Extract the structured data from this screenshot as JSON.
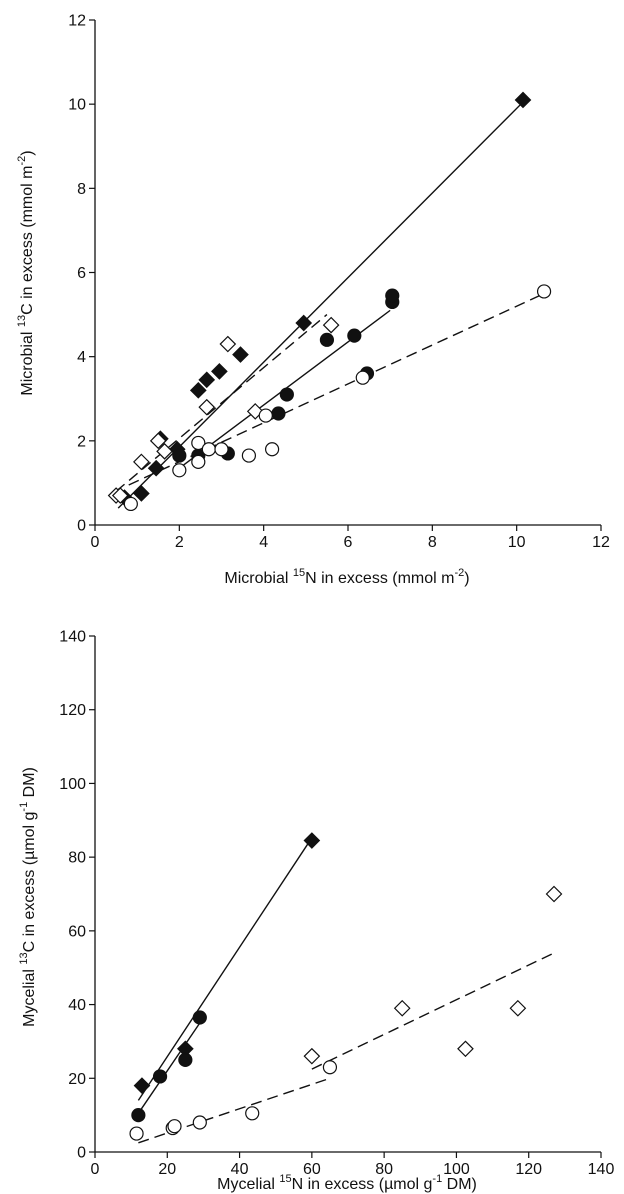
{
  "chart_data": [
    {
      "type": "scatter",
      "title": "",
      "xlabel": {
        "pre": "Microbial ",
        "sup1": "15",
        "mid": "N in excess (mmol m",
        "sup2": "-2",
        "post": ")"
      },
      "ylabel": {
        "pre": "Microbial ",
        "sup1": "13",
        "mid": "C in excess (mmol m",
        "sup2": "-2",
        "post": ")"
      },
      "xlim": [
        0,
        12
      ],
      "ylim": [
        0,
        12
      ],
      "xticks": [
        0,
        2,
        4,
        6,
        8,
        10,
        12
      ],
      "yticks": [
        0,
        2,
        4,
        6,
        8,
        10,
        12
      ],
      "xtick_labels": [
        "0",
        "2",
        "4",
        "6",
        "8",
        "10",
        "12"
      ],
      "ytick_labels": [
        "0",
        "2",
        "4",
        "6",
        "8",
        "10",
        "12"
      ],
      "grid": false,
      "series": [
        {
          "marker": "diamond-filled",
          "points": [
            [
              0.7,
              0.65
            ],
            [
              1.1,
              0.75
            ],
            [
              1.45,
              1.35
            ],
            [
              1.55,
              2.05
            ],
            [
              1.95,
              1.8
            ],
            [
              2.45,
              3.2
            ],
            [
              2.65,
              3.45
            ],
            [
              2.95,
              3.65
            ],
            [
              3.45,
              4.05
            ],
            [
              4.95,
              4.8
            ],
            [
              10.15,
              10.1
            ]
          ]
        },
        {
          "marker": "diamond-open",
          "points": [
            [
              0.5,
              0.7
            ],
            [
              0.6,
              0.7
            ],
            [
              1.1,
              1.5
            ],
            [
              1.5,
              2.0
            ],
            [
              1.65,
              1.75
            ],
            [
              2.65,
              2.8
            ],
            [
              3.15,
              4.3
            ],
            [
              3.8,
              2.7
            ],
            [
              5.6,
              4.75
            ]
          ]
        },
        {
          "marker": "circle-filled",
          "points": [
            [
              2.0,
              1.65
            ],
            [
              2.45,
              1.65
            ],
            [
              3.15,
              1.7
            ],
            [
              4.35,
              2.65
            ],
            [
              4.55,
              3.1
            ],
            [
              5.5,
              4.4
            ],
            [
              6.15,
              4.5
            ],
            [
              6.45,
              3.6
            ],
            [
              7.05,
              5.3
            ],
            [
              7.05,
              5.45
            ]
          ]
        },
        {
          "marker": "circle-open",
          "points": [
            [
              0.85,
              0.5
            ],
            [
              2.0,
              1.3
            ],
            [
              2.45,
              1.95
            ],
            [
              2.7,
              1.8
            ],
            [
              2.45,
              1.5
            ],
            [
              3.0,
              1.8
            ],
            [
              3.65,
              1.65
            ],
            [
              4.05,
              2.6
            ],
            [
              4.2,
              1.8
            ],
            [
              6.35,
              3.5
            ],
            [
              10.65,
              5.55
            ]
          ]
        }
      ],
      "lines": [
        {
          "style": "solid",
          "from": [
            0.55,
            0.4
          ],
          "to": [
            10.15,
            10.05
          ]
        },
        {
          "style": "dashed",
          "from": [
            0.5,
            0.8
          ],
          "to": [
            5.5,
            5.0
          ]
        },
        {
          "style": "solid",
          "from": [
            2.0,
            1.35
          ],
          "to": [
            7.0,
            5.1
          ]
        },
        {
          "style": "dashed",
          "from": [
            0.8,
            0.95
          ],
          "to": [
            10.65,
            5.5
          ]
        }
      ]
    },
    {
      "type": "scatter",
      "title": "",
      "xlabel": {
        "pre": "Mycelial ",
        "sup1": "15",
        "mid": "N in excess (µmol g",
        "sup2": "-1",
        "post": " DM)"
      },
      "ylabel": {
        "pre": "Mycelial ",
        "sup1": "13",
        "mid": "C in excess (µmol g",
        "sup2": "-1",
        "post": " DM)"
      },
      "xlim": [
        0,
        140
      ],
      "ylim": [
        0,
        140
      ],
      "xticks": [
        0,
        20,
        40,
        60,
        80,
        100,
        120,
        140
      ],
      "yticks": [
        0,
        20,
        40,
        60,
        80,
        100,
        120,
        140
      ],
      "xtick_labels": [
        "0",
        "20",
        "40",
        "60",
        "80",
        "100",
        "120",
        "140"
      ],
      "ytick_labels": [
        "0",
        "20",
        "40",
        "60",
        "80",
        "100",
        "120",
        "140"
      ],
      "grid": false,
      "series": [
        {
          "marker": "diamond-filled",
          "points": [
            [
              13,
              18
            ],
            [
              25,
              28
            ],
            [
              60,
              84.5
            ]
          ]
        },
        {
          "marker": "diamond-open",
          "points": [
            [
              60,
              26
            ],
            [
              85,
              39
            ],
            [
              102.5,
              28
            ],
            [
              117,
              39
            ],
            [
              127,
              70
            ]
          ]
        },
        {
          "marker": "circle-filled",
          "points": [
            [
              12,
              10
            ],
            [
              18,
              20.5
            ],
            [
              25,
              25
            ],
            [
              29,
              36.5
            ]
          ]
        },
        {
          "marker": "circle-open",
          "points": [
            [
              11.5,
              5
            ],
            [
              21.5,
              6.5
            ],
            [
              22,
              7
            ],
            [
              29,
              8
            ],
            [
              43.5,
              10.5
            ],
            [
              65,
              23
            ]
          ]
        }
      ],
      "lines": [
        {
          "style": "solid",
          "from": [
            12,
            14
          ],
          "to": [
            59.5,
            84.5
          ]
        },
        {
          "style": "solid",
          "from": [
            12,
            10.5
          ],
          "to": [
            29,
            35
          ]
        },
        {
          "style": "dashed",
          "from": [
            60,
            22.5
          ],
          "to": [
            127,
            54
          ]
        },
        {
          "style": "dashed",
          "from": [
            12,
            2.5
          ],
          "to": [
            65,
            20
          ]
        }
      ]
    }
  ]
}
